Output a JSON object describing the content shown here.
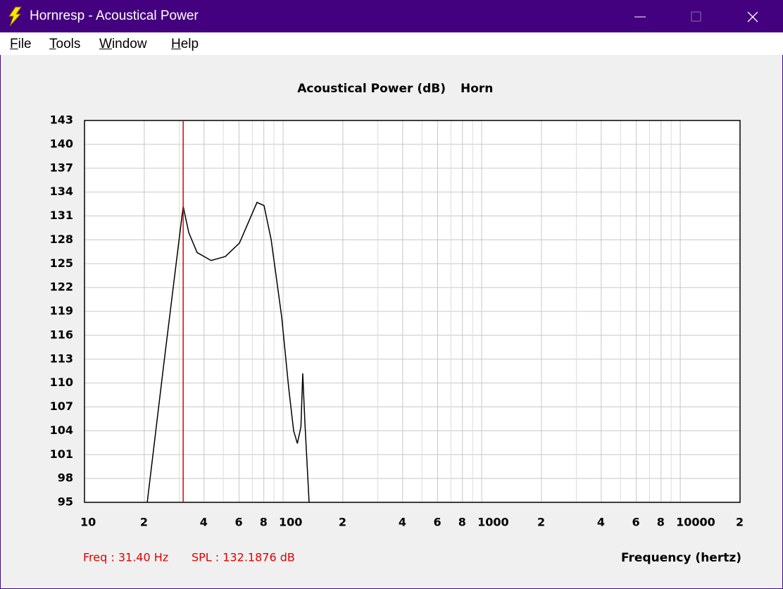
{
  "window": {
    "title": "Hornresp - Acoustical Power",
    "menu": [
      "File",
      "Tools",
      "Window",
      "Help"
    ]
  },
  "chart_data": {
    "type": "line",
    "title": "Acoustical Power (dB)",
    "xscale": "log",
    "grid": true,
    "x_label": "Frequency (hertz)",
    "xlim": [
      10,
      20000
    ],
    "xticks": [
      10,
      {
        "value": 20,
        "label": "2"
      },
      {
        "value": 40,
        "label": "4"
      },
      {
        "value": 60,
        "label": "6"
      },
      {
        "value": 80,
        "label": "8"
      },
      100,
      {
        "value": 200,
        "label": "2"
      },
      {
        "value": 400,
        "label": "4"
      },
      {
        "value": 600,
        "label": "6"
      },
      {
        "value": 800,
        "label": "8"
      },
      1000,
      {
        "value": 2000,
        "label": "2"
      },
      {
        "value": 4000,
        "label": "4"
      },
      {
        "value": 6000,
        "label": "6"
      },
      {
        "value": 8000,
        "label": "8"
      },
      10000,
      {
        "value": 20000,
        "label": "2"
      }
    ],
    "xminor": [
      30,
      50,
      70,
      90,
      300,
      500,
      700,
      900,
      3000,
      5000,
      7000,
      9000
    ],
    "ylim": [
      95,
      143
    ],
    "yticks": [
      95,
      98,
      101,
      104,
      107,
      110,
      113,
      116,
      119,
      122,
      125,
      128,
      131,
      134,
      137,
      140,
      143
    ],
    "series": [
      {
        "name": "Horn",
        "color": "#000000",
        "x": [
          20.7,
          25,
          31.4,
          33.5,
          36.9,
          43.4,
          51.2,
          60.3,
          73.9,
          80.2,
          87.1,
          98.4,
          106.7,
          113,
          118,
          123,
          125.6,
          128.8,
          135.2
        ],
        "values": [
          95,
          112.1,
          132.2,
          128.9,
          126.4,
          125.4,
          125.9,
          127.6,
          132.7,
          132.3,
          128.0,
          118.3,
          109.4,
          104,
          102.4,
          104.5,
          111.2,
          105,
          95
        ]
      }
    ],
    "cursor": {
      "freq": 31.4,
      "color": "#e00000",
      "readout_freq": "Freq : 31.40 Hz",
      "readout_spl": "SPL : 132.1876 dB"
    }
  }
}
